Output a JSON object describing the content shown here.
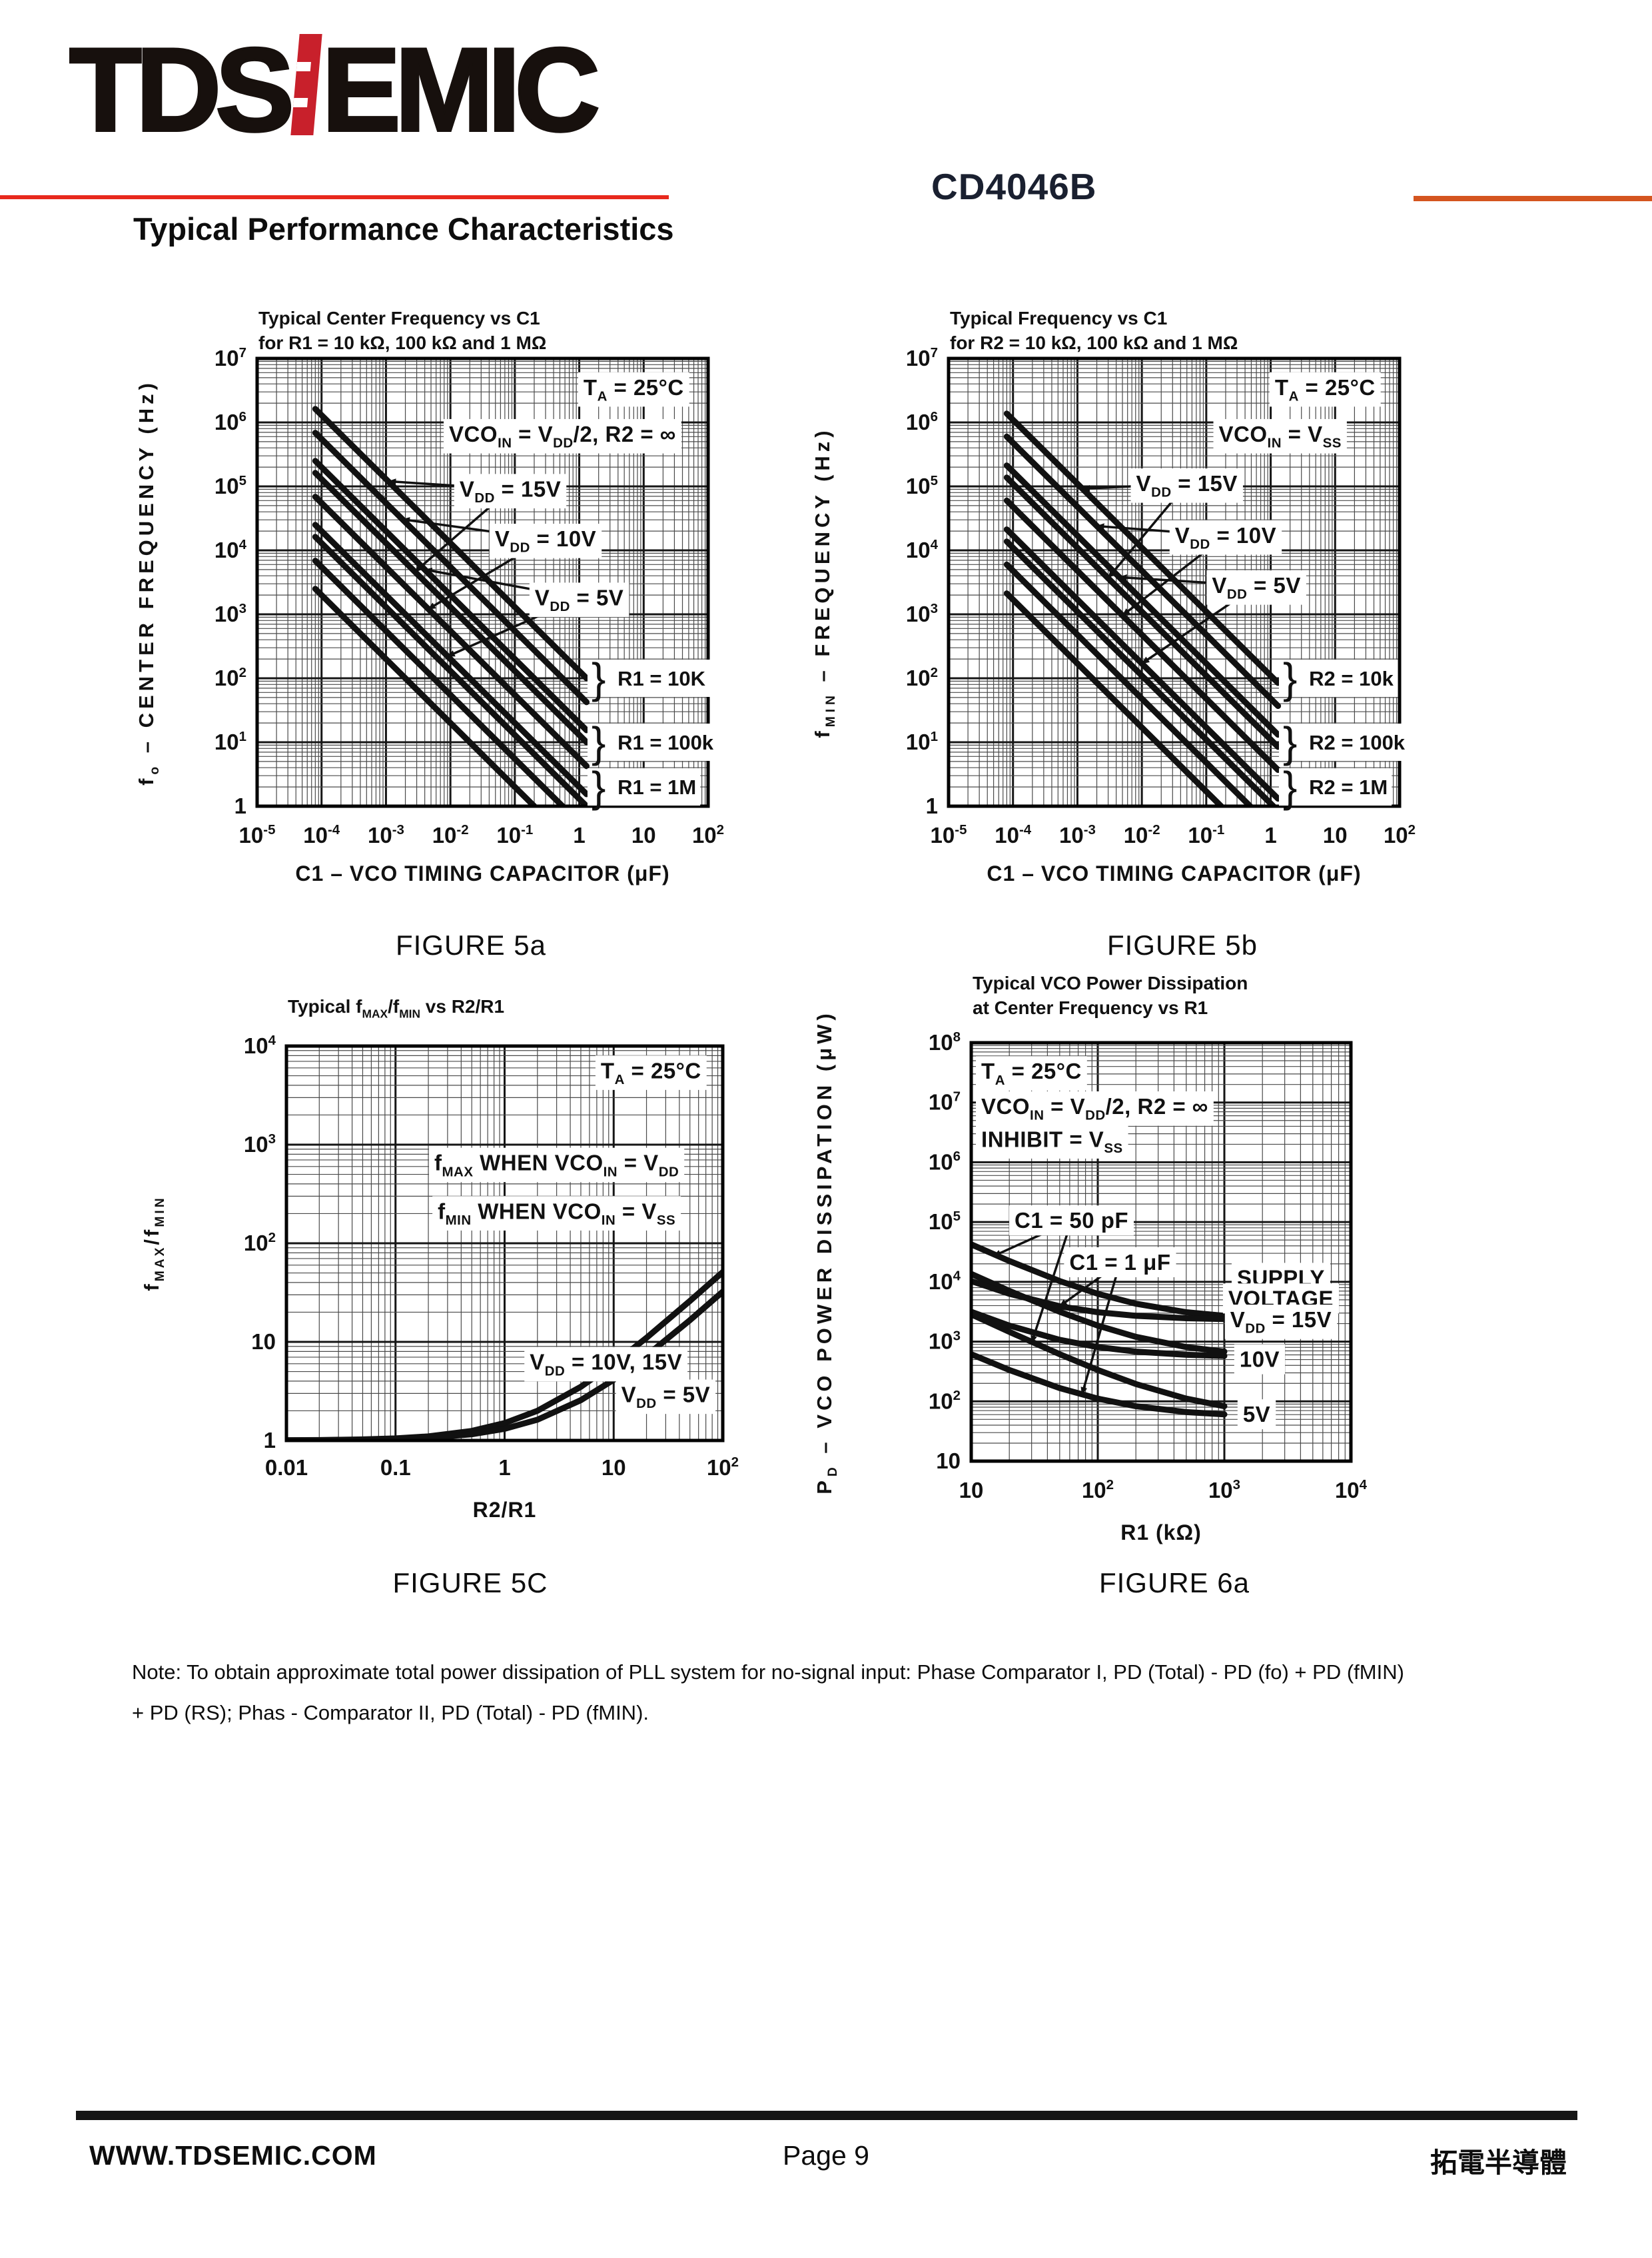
{
  "header": {
    "logo_left": "TDS",
    "logo_right": "EMIC",
    "part_number": "CD4046B",
    "section_title": "Typical Performance Characteristics",
    "accent_color": "#c8202b",
    "rule_left_color": "#e8291d",
    "rule_right_color": "#d4551f"
  },
  "note": {
    "line1": "Note: To obtain approximate total power dissipation of PLL system for no-signal input: Phase Comparator I, PD (Total) - PD (fo) + PD (fMIN)",
    "line2": "+ PD (RS); Phas - Comparator II, PD (Total) - PD (fMIN)."
  },
  "footer": {
    "website": "WWW.TDSEMIC.COM",
    "page_label": "Page 9",
    "company": "拓電半導體"
  },
  "chart_data": [
    {
      "id": "5a",
      "type": "line",
      "caption": "FIGURE 5a",
      "title_lines": [
        "Typical Center Frequency vs C1",
        "for R1 =  10 kΩ, 100 kΩ and 1 MΩ"
      ],
      "xlabel": "C1 – VCO TIMING CAPACITOR (μF)",
      "ylabel": "f_{o} – CENTER FREQUENCY (Hz)",
      "xscale": "log",
      "yscale": "log",
      "grid": true,
      "xlim": [
        1e-05,
        100
      ],
      "ylim": [
        1,
        10000000.0
      ],
      "x_ticks": [
        "10^{-5}",
        "10^{-4}",
        "10^{-3}",
        "10^{-2}",
        "10^{-1}",
        "1",
        "10",
        "10^{2}"
      ],
      "y_ticks": [
        "1",
        "10^{1}",
        "10^{2}",
        "10^{3}",
        "10^{4}",
        "10^{5}",
        "10^{6}",
        "10^{7}"
      ],
      "series": [
        {
          "label": "R1 = 10K, V_{DD} = 15V",
          "x": [
            8e-05,
            1.3
          ],
          "y": [
            1625000,
            100
          ]
        },
        {
          "label": "R1 = 10K, V_{DD} = 10V",
          "x": [
            8e-05,
            1.3
          ],
          "y": [
            687500,
            42.3
          ]
        },
        {
          "label": "R1 = 10K, V_{DD} = 5V",
          "x": [
            8e-05,
            1.3
          ],
          "y": [
            250000,
            15.4
          ]
        },
        {
          "label": "R1 = 100k, V_{DD} = 15V",
          "x": [
            8e-05,
            1.3
          ],
          "y": [
            162500,
            10
          ]
        },
        {
          "label": "R1 = 100k, V_{DD} = 10V",
          "x": [
            8e-05,
            1.3
          ],
          "y": [
            68750,
            4.23
          ]
        },
        {
          "label": "R1 = 100k, V_{DD} = 5V",
          "x": [
            8e-05,
            1.3
          ],
          "y": [
            25000,
            1.54
          ]
        },
        {
          "label": "R1 = 1M, V_{DD} = 15V",
          "x": [
            8e-05,
            1.3
          ],
          "y": [
            16250,
            1
          ]
        },
        {
          "label": "R1 = 1M, V_{DD} = 10V",
          "x": [
            8e-05,
            0.55
          ],
          "y": [
            6875,
            1
          ]
        },
        {
          "label": "R1 = 1M, V_{DD} = 5V",
          "x": [
            8e-05,
            0.2
          ],
          "y": [
            2500,
            1
          ]
        }
      ],
      "annotations": [
        {
          "text": "T_{A} = 25°C",
          "x": 7,
          "y": 3500000
        },
        {
          "text": "VCO_{IN} = V_{DD}/2, R2 = ∞",
          "x": 0.55,
          "y": 650000
        },
        {
          "text": "V_{DD} = 15V",
          "x": 0.085,
          "y": 90000,
          "arrows": [
            [
              0.0011,
              120000
            ],
            [
              0.0028,
              4600
            ]
          ]
        },
        {
          "text": "V_{DD} = 10V",
          "x": 0.3,
          "y": 15000,
          "arrows": [
            [
              0.0018,
              30500
            ],
            [
              0.0045,
              1200
            ]
          ]
        },
        {
          "text": "V_{DD} = 5V",
          "x": 1.0,
          "y": 1800,
          "arrows": [
            [
              0.004,
              5000
            ],
            [
              0.009,
              220
            ]
          ]
        }
      ],
      "side_labels": [
        {
          "text": "R1 = 10K",
          "x": 1.55,
          "y": 100
        },
        {
          "text": "R1 = 100k",
          "x": 1.55,
          "y": 10
        },
        {
          "text": "R1 = 1M",
          "x": 1.55,
          "y": 2
        }
      ]
    },
    {
      "id": "5b",
      "type": "line",
      "caption": "FIGURE 5b",
      "title_lines": [
        "Typical Frequency vs C1",
        "for R2 =  10 kΩ, 100 kΩ and 1 MΩ"
      ],
      "xlabel": "C1 – VCO TIMING CAPACITOR (μF)",
      "ylabel": "f_{MIN} – FREQUENCY (Hz)",
      "xscale": "log",
      "yscale": "log",
      "grid": true,
      "xlim": [
        1e-05,
        100
      ],
      "ylim": [
        1,
        10000000.0
      ],
      "x_ticks": [
        "10^{-5}",
        "10^{-4}",
        "10^{-3}",
        "10^{-2}",
        "10^{-1}",
        "1",
        "10",
        "10^{2}"
      ],
      "y_ticks": [
        "1",
        "10^{1}",
        "10^{2}",
        "10^{3}",
        "10^{4}",
        "10^{5}",
        "10^{6}",
        "10^{7}"
      ],
      "series": [
        {
          "label": "R2 = 10k, V_{DD} = 15V",
          "x": [
            8e-05,
            1.3
          ],
          "y": [
            1375000,
            84.6
          ]
        },
        {
          "label": "R2 = 10k, V_{DD} = 10V",
          "x": [
            8e-05,
            1.3
          ],
          "y": [
            600000,
            36.9
          ]
        },
        {
          "label": "R2 = 10k, V_{DD} = 5V",
          "x": [
            8e-05,
            1.3
          ],
          "y": [
            212500,
            13.1
          ]
        },
        {
          "label": "R2 = 100k, V_{DD} = 15V",
          "x": [
            8e-05,
            1.3
          ],
          "y": [
            137500,
            8.46
          ]
        },
        {
          "label": "R2 = 100k, V_{DD} = 10V",
          "x": [
            8e-05,
            1.3
          ],
          "y": [
            60000,
            3.69
          ]
        },
        {
          "label": "R2 = 100k, V_{DD} = 5V",
          "x": [
            8e-05,
            1.3
          ],
          "y": [
            21250,
            1.31
          ]
        },
        {
          "label": "R2 = 1M, V_{DD} = 15V",
          "x": [
            8e-05,
            1.1
          ],
          "y": [
            13750,
            1
          ]
        },
        {
          "label": "R2 = 1M, V_{DD} = 10V",
          "x": [
            8e-05,
            0.48
          ],
          "y": [
            6000,
            1
          ]
        },
        {
          "label": "R2 = 1M, V_{DD} = 5V",
          "x": [
            8e-05,
            0.17
          ],
          "y": [
            2125,
            1
          ]
        }
      ],
      "annotations": [
        {
          "text": "T_{A} = 25°C",
          "x": 7,
          "y": 3500000
        },
        {
          "text": "VCO_{IN} = V_{SS}",
          "x": 1.4,
          "y": 650000
        },
        {
          "text": "V_{DD} = 15V",
          "x": 0.05,
          "y": 110000,
          "arrows": [
            [
              0.0012,
              92000
            ],
            [
              0.003,
              3700
            ]
          ]
        },
        {
          "text": "V_{DD} = 10V",
          "x": 0.2,
          "y": 17000,
          "arrows": [
            [
              0.002,
              24000
            ],
            [
              0.005,
              960
            ]
          ]
        },
        {
          "text": "V_{DD} = 5V",
          "x": 0.6,
          "y": 2800,
          "arrows": [
            [
              0.0045,
              3800
            ],
            [
              0.01,
              170
            ]
          ]
        }
      ],
      "side_labels": [
        {
          "text": "R2 = 10k",
          "x": 1.55,
          "y": 100
        },
        {
          "text": "R2 = 100k",
          "x": 1.55,
          "y": 10
        },
        {
          "text": "R2 = 1M",
          "x": 1.55,
          "y": 2
        }
      ]
    },
    {
      "id": "5c",
      "type": "line",
      "caption": "FIGURE 5C",
      "title_lines": [
        "Typical f_{MAX}/f_{MIN} vs R2/R1"
      ],
      "xlabel": "R2/R1",
      "ylabel": "f_{MAX}/f_{MIN}",
      "xscale": "log",
      "yscale": "log",
      "grid": true,
      "xlim": [
        0.01,
        100
      ],
      "ylim": [
        1,
        10000
      ],
      "x_ticks": [
        "0.01",
        "0.1",
        "1",
        "10",
        "10^{2}"
      ],
      "y_ticks": [
        "1",
        "10",
        "10^{2}",
        "10^{3}",
        "10^{4}"
      ],
      "series": [
        {
          "label": "V_{DD} = 10V, 15V",
          "x": [
            0.01,
            0.02,
            0.05,
            0.1,
            0.2,
            0.5,
            1,
            2,
            5,
            10,
            20,
            50,
            100
          ],
          "y": [
            1.005,
            1.01,
            1.025,
            1.05,
            1.1,
            1.25,
            1.5,
            2,
            3.5,
            6,
            11,
            26,
            51
          ]
        },
        {
          "label": "V_{DD} = 5V",
          "x": [
            0.01,
            0.02,
            0.05,
            0.1,
            0.2,
            0.5,
            1,
            2,
            5,
            10,
            20,
            50,
            100
          ],
          "y": [
            1.003,
            1.006,
            1.016,
            1.031,
            1.063,
            1.156,
            1.313,
            1.625,
            2.563,
            4.125,
            7.25,
            16.6,
            32.3
          ]
        }
      ],
      "annotations": [
        {
          "text": "T_{A} = 25°C",
          "x": 22,
          "y": 5600
        },
        {
          "text": "f_{MAX} WHEN VCO_{IN} = V_{DD}",
          "x": 3,
          "y": 650
        },
        {
          "text": "f_{MIN} WHEN VCO_{IN} = V_{SS}",
          "x": 3,
          "y": 210
        },
        {
          "text": "V_{DD} = 10V, 15V",
          "x": 8.5,
          "y": 6.2
        },
        {
          "text": "V_{DD} = 5V",
          "x": 30,
          "y": 2.9
        }
      ],
      "side_labels": []
    },
    {
      "id": "6a",
      "type": "line",
      "caption": "FIGURE 6a",
      "title_lines": [
        "Typical VCO Power Dissipation",
        "at Center Frequency vs R1"
      ],
      "xlabel": "R1 (kΩ)",
      "ylabel": "P_{D} – VCO POWER DISSIPATION (μW)",
      "xscale": "log",
      "yscale": "log",
      "grid": true,
      "xlim": [
        10,
        10000
      ],
      "ylim": [
        10,
        100000000.0
      ],
      "x_ticks": [
        "10",
        "10^{2}",
        "10^{3}",
        "10^{4}"
      ],
      "y_ticks": [
        "10",
        "10^{2}",
        "10^{3}",
        "10^{4}",
        "10^{5}",
        "10^{6}",
        "10^{7}",
        "10^{8}"
      ],
      "series": [
        {
          "label": "C1 = 50 pF, V_{DD} = 15V",
          "x": [
            10,
            20,
            50,
            100,
            200,
            500,
            1000
          ],
          "y": [
            42300,
            22300,
            10300,
            6300,
            4300,
            3100,
            2700
          ]
        },
        {
          "label": "C1 = 50 pF, V_{DD} = 10V",
          "x": [
            10,
            20,
            50,
            100,
            200,
            500,
            1000
          ],
          "y": [
            13550,
            7050,
            3150,
            1850,
            1200,
            810,
            680
          ]
        },
        {
          "label": "C1 = 50 pF, V_{DD} = 5V",
          "x": [
            10,
            20,
            50,
            100,
            200,
            500,
            1000
          ],
          "y": [
            2855,
            1455,
            615,
            335,
            195,
            111,
            83
          ]
        },
        {
          "label": "C1 = 1 μF, V_{DD} = 15V",
          "x": [
            10,
            20,
            50,
            100,
            200,
            500,
            1000
          ],
          "y": [
            10300,
            6300,
            3900,
            3100,
            2700,
            2460,
            2380
          ]
        },
        {
          "label": "C1 = 1 μF, V_{DD} = 10V",
          "x": [
            10,
            20,
            50,
            100,
            200,
            500,
            1000
          ],
          "y": [
            3150,
            1850,
            1070,
            810,
            680,
            602,
            576
          ]
        },
        {
          "label": "C1 = 1 μF, V_{DD} = 5V",
          "x": [
            10,
            20,
            50,
            100,
            200,
            500,
            1000
          ],
          "y": [
            615,
            335,
            167,
            111,
            83,
            66.2,
            60.6
          ]
        }
      ],
      "annotations": [
        {
          "text": "T_{A} = 25°C",
          "x": 12,
          "y": 33000000,
          "align": "start"
        },
        {
          "text": "VCO_{IN} = V_{DD}/2, R2 = ∞",
          "x": 12,
          "y": 8500000,
          "align": "start"
        },
        {
          "text": "INHIBIT = V_{SS}",
          "x": 12,
          "y": 2400000,
          "align": "start"
        },
        {
          "text": "C1 = 50 pF",
          "x": 62,
          "y": 105000,
          "arrows": [
            [
              15,
              27000
            ],
            [
              30,
              950
            ]
          ]
        },
        {
          "text": "C1 = 1 μF",
          "x": 150,
          "y": 21000,
          "arrows": [
            [
              50,
              3900
            ],
            [
              75,
              130
            ]
          ]
        },
        {
          "text": "SUPPLY",
          "x": 2800,
          "y": 11500
        },
        {
          "text": "VOLTAGE",
          "x": 2800,
          "y": 5200
        },
        {
          "text": "V_{DD} = 15V",
          "x": 2800,
          "y": 2300
        },
        {
          "text": "10V",
          "x": 1900,
          "y": 500
        },
        {
          "text": "5V",
          "x": 1800,
          "y": 60
        }
      ],
      "side_labels": []
    }
  ]
}
